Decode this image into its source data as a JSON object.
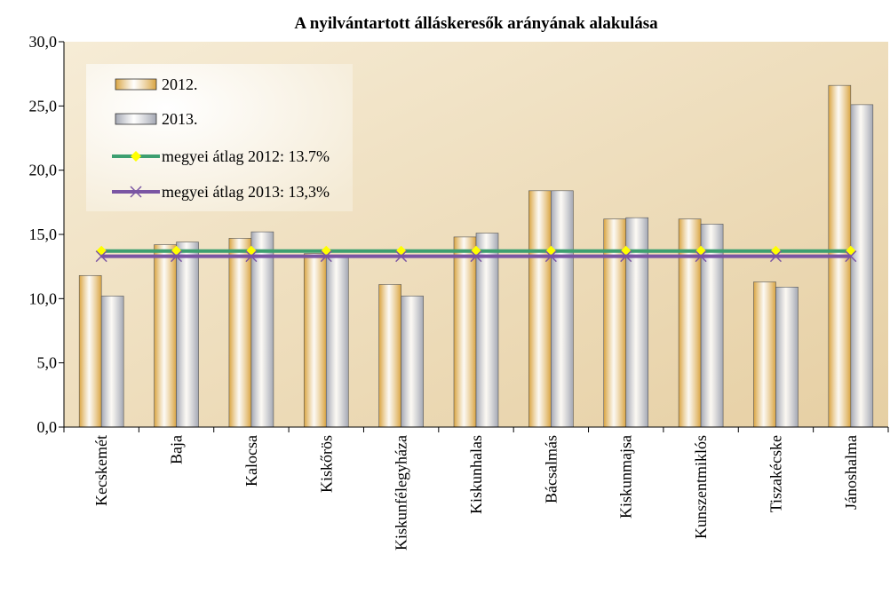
{
  "chart_data": {
    "type": "bar",
    "title": "A nyilvántartott álláskeresők arányának alakulása",
    "categories": [
      "Kecskemét",
      "Baja",
      "Kalocsa",
      "Kiskőrös",
      "Kiskunfélegyháza",
      "Kiskunhalas",
      "Bácsalmás",
      "Kiskunmajsa",
      "Kunszentmiklós",
      "Tiszakécske",
      "Jánoshalma"
    ],
    "series": [
      {
        "name": "2012.",
        "type": "bar",
        "color": "#d9a441",
        "values": [
          11.8,
          14.2,
          14.7,
          13.5,
          11.1,
          14.8,
          18.4,
          16.2,
          16.2,
          11.3,
          26.6
        ]
      },
      {
        "name": "2013.",
        "type": "bar",
        "color": "#a3a7b3",
        "values": [
          10.2,
          14.4,
          15.2,
          13.3,
          10.2,
          15.1,
          18.4,
          16.3,
          15.8,
          10.9,
          25.1
        ]
      },
      {
        "name": "megyei átlag  2012: 13.7%",
        "type": "line",
        "marker": "diamond",
        "color": "#3d9f70",
        "marker_color": "#ffff00",
        "values": [
          13.7,
          13.7,
          13.7,
          13.7,
          13.7,
          13.7,
          13.7,
          13.7,
          13.7,
          13.7,
          13.7
        ]
      },
      {
        "name": "megyei átlag  2013: 13,3%",
        "type": "line",
        "marker": "x",
        "color": "#7a55a3",
        "marker_color": "#7a55a3",
        "values": [
          13.3,
          13.3,
          13.3,
          13.3,
          13.3,
          13.3,
          13.3,
          13.3,
          13.3,
          13.3,
          13.3
        ]
      }
    ],
    "ylim": [
      0,
      30
    ],
    "yticks": [
      {
        "value": 0,
        "label": "0,0"
      },
      {
        "value": 5,
        "label": "5,0"
      },
      {
        "value": 10,
        "label": "10,0"
      },
      {
        "value": 15,
        "label": "15,0"
      },
      {
        "value": 20,
        "label": "20,0"
      },
      {
        "value": 25,
        "label": "25,0"
      },
      {
        "value": 30,
        "label": "30,0"
      }
    ],
    "legend": "upper left"
  }
}
